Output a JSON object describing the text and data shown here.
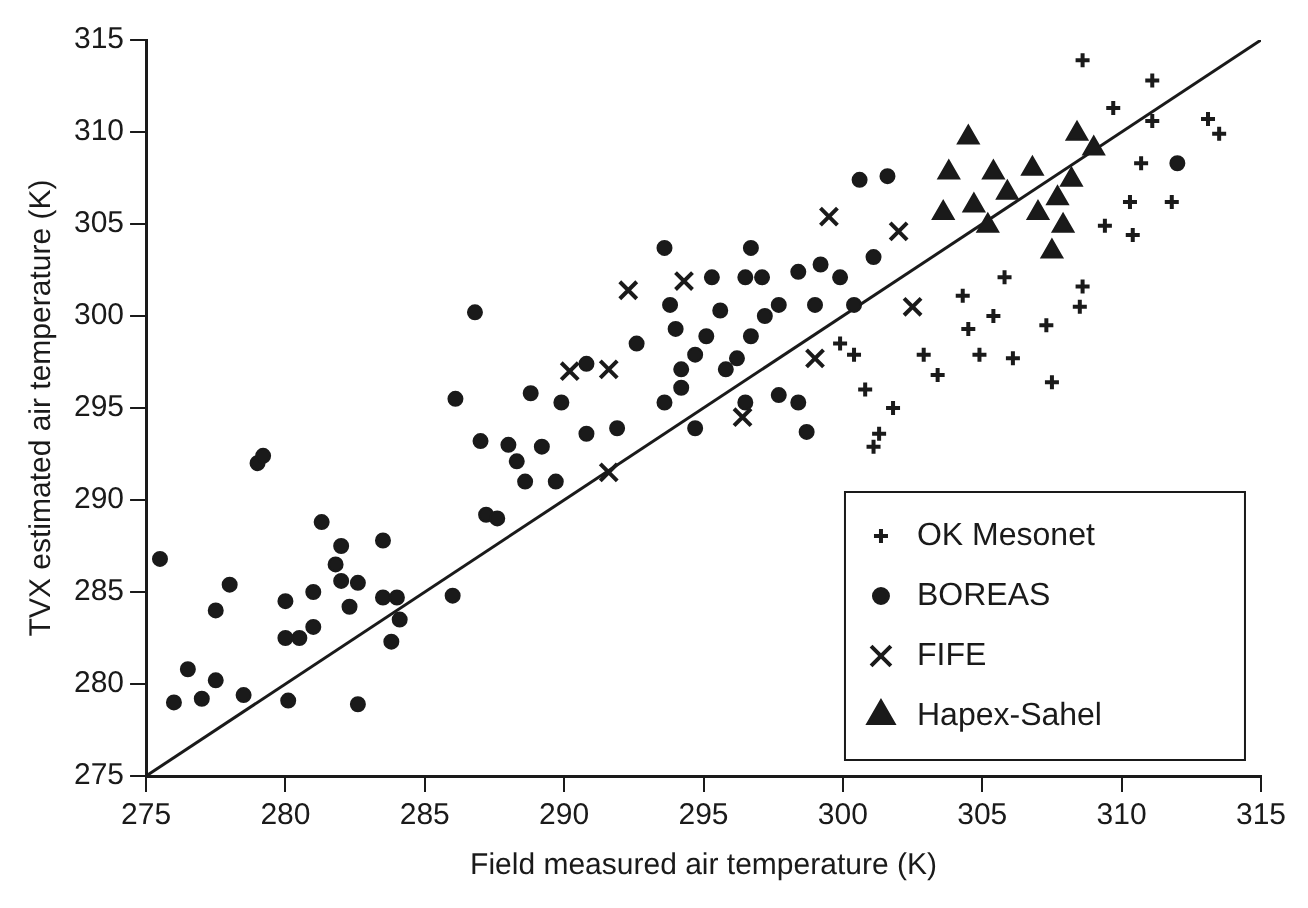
{
  "chart_data": {
    "type": "scatter",
    "xlabel": "Field measured air temperature (K)",
    "ylabel": "TVX estimated air temperature (K)",
    "xlim": [
      275,
      315
    ],
    "ylim": [
      275,
      315
    ],
    "xticks": [
      275,
      280,
      285,
      290,
      295,
      300,
      305,
      310,
      315
    ],
    "yticks": [
      275,
      280,
      285,
      290,
      295,
      300,
      305,
      310,
      315
    ],
    "grid": false,
    "legend": "bottom right",
    "series": [
      {
        "name": "OK Mesonet",
        "color": "#1a1a1a",
        "marker": "plus",
        "x": [
          308.6,
          311.1,
          309.7,
          313.1,
          313.5,
          311.1,
          310.7,
          310.3,
          311.8,
          310.4,
          309.4,
          308.6,
          308.5,
          307.3,
          307.5,
          306.1,
          304.9,
          303.4,
          302.9,
          304.3,
          305.4,
          305.8,
          304.5,
          301.8,
          301.1,
          301.3,
          300.8,
          299.9,
          300.4
        ],
        "values": [
          313.9,
          312.8,
          311.3,
          310.7,
          309.9,
          310.6,
          308.3,
          306.2,
          306.2,
          304.4,
          304.9,
          301.6,
          300.5,
          299.5,
          296.4,
          297.7,
          297.9,
          296.8,
          297.9,
          301.1,
          300,
          302.1,
          299.3,
          295,
          292.9,
          293.6,
          296,
          298.5,
          297.9
        ]
      },
      {
        "name": "BOREAS",
        "color": "#1a1a1a",
        "marker": "circle",
        "x": [
          275.5,
          276,
          276.5,
          277,
          277.5,
          277.5,
          278,
          278.5,
          279,
          279.2,
          280,
          280,
          280.1,
          280.5,
          281,
          281,
          281.3,
          281.8,
          282,
          282,
          282.3,
          282.6,
          282.6,
          283.5,
          283.5,
          284,
          283.8,
          284.1,
          286,
          286.1,
          286.8,
          287,
          287.2,
          287.6,
          288,
          288.3,
          288.6,
          288.8,
          289.2,
          289.7,
          289.9,
          290.8,
          290.8,
          291.9,
          292.6,
          293.6,
          293.8,
          294,
          294.2,
          293.6,
          294.7,
          295.1,
          295.6,
          295.8,
          295.3,
          296.7,
          296.5,
          296.7,
          297.2,
          297.1,
          297.7,
          297.7,
          298.4,
          298.4,
          298.7,
          299,
          299.2,
          299.9,
          300.4,
          300.6,
          301.6,
          301.1,
          294.7,
          296.5,
          296.2,
          294.2,
          312
        ],
        "values": [
          286.8,
          279,
          280.8,
          279.2,
          280.2,
          284,
          285.4,
          279.4,
          292,
          292.4,
          284.5,
          282.5,
          279.1,
          282.5,
          285,
          283.1,
          288.8,
          286.5,
          285.6,
          287.5,
          284.2,
          285.5,
          278.9,
          287.8,
          284.7,
          284.7,
          282.3,
          283.5,
          284.8,
          295.5,
          300.2,
          293.2,
          289.2,
          289,
          293,
          292.1,
          291,
          295.8,
          292.9,
          291,
          295.3,
          297.4,
          293.6,
          293.9,
          298.5,
          303.7,
          300.6,
          299.3,
          297.1,
          295.3,
          297.9,
          298.9,
          300.3,
          297.1,
          302.1,
          303.7,
          302.1,
          298.9,
          300,
          302.1,
          300.6,
          295.7,
          302.4,
          295.3,
          293.7,
          300.6,
          302.8,
          302.1,
          300.6,
          307.4,
          307.6,
          303.2,
          293.9,
          295.3,
          297.7,
          296.1,
          308.3
        ]
      },
      {
        "name": "FIFE",
        "color": "#1a1a1a",
        "marker": "cross",
        "x": [
          292.3,
          294.3,
          291.6,
          291.6,
          296.4,
          299.5,
          299,
          302,
          290.2,
          302.5
        ],
        "values": [
          301.4,
          301.9,
          297.1,
          291.5,
          294.5,
          305.4,
          297.7,
          304.6,
          297,
          300.5
        ]
      },
      {
        "name": "Hapex-Sahel",
        "color": "#1a1a1a",
        "marker": "triangle",
        "x": [
          304.5,
          303.8,
          305.4,
          306.8,
          308.4,
          309,
          303.6,
          305.2,
          307.7,
          307.9,
          307.5,
          304.7,
          305.9,
          308.2,
          307
        ],
        "values": [
          309.7,
          307.8,
          307.8,
          308,
          309.9,
          309.1,
          305.6,
          304.9,
          306.4,
          304.9,
          303.5,
          306,
          306.7,
          307.4,
          305.6
        ]
      },
      {
        "type": "line",
        "color": "#1a1a1a",
        "marker": "none",
        "x": [
          275,
          315
        ],
        "values": [
          275,
          315
        ]
      }
    ]
  }
}
